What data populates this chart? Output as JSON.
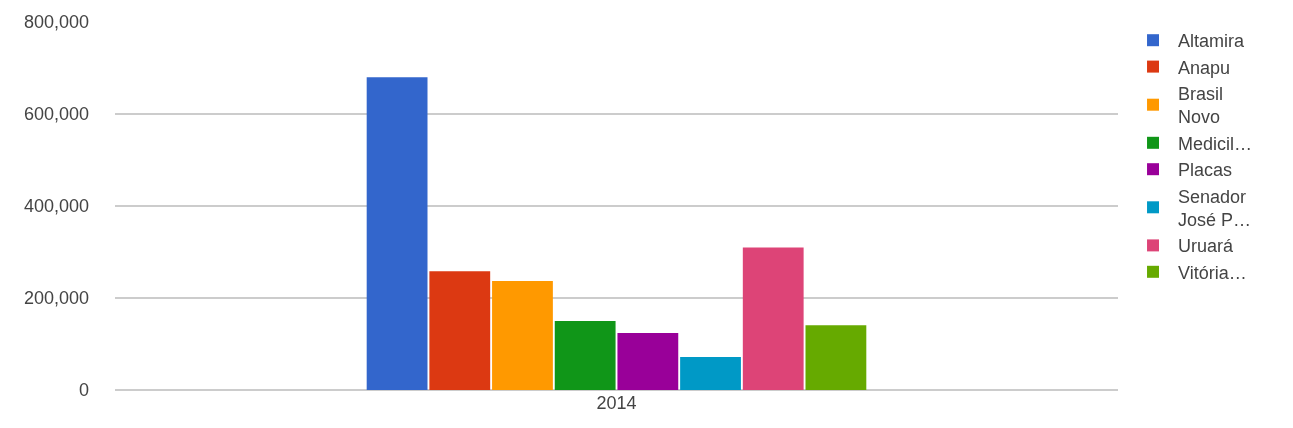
{
  "chart_data": {
    "type": "bar",
    "categories": [
      "2014"
    ],
    "series": [
      {
        "name": "Altamira",
        "color": "#3366cc",
        "values": [
          680000
        ]
      },
      {
        "name": "Anapu",
        "color": "#dc3912",
        "values": [
          258000
        ]
      },
      {
        "name": "Brasil Novo",
        "color": "#ff9900",
        "values": [
          237000
        ]
      },
      {
        "name": "Medicil…",
        "color": "#109618",
        "values": [
          150000
        ]
      },
      {
        "name": "Placas",
        "color": "#990099",
        "values": [
          124000
        ]
      },
      {
        "name": "Senador José P…",
        "color": "#0099c6",
        "values": [
          72000
        ]
      },
      {
        "name": "Uruará",
        "color": "#dd4477",
        "values": [
          310000
        ]
      },
      {
        "name": "Vitória…",
        "color": "#66aa00",
        "values": [
          141000
        ]
      }
    ],
    "ylim": [
      0,
      800000
    ],
    "yticks": [
      {
        "value": 0,
        "label": "0"
      },
      {
        "value": 200000,
        "label": "200,000"
      },
      {
        "value": 400000,
        "label": "400,000"
      },
      {
        "value": 600000,
        "label": "600,000"
      },
      {
        "value": 800000,
        "label": "800,000"
      }
    ],
    "grid": "y",
    "legend": "right"
  }
}
